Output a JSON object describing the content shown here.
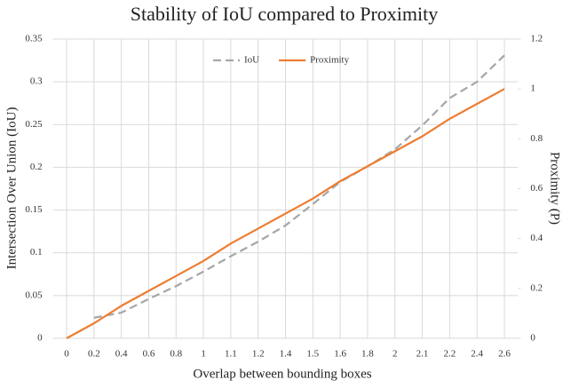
{
  "chart_data": {
    "type": "line",
    "title": "Stability of IoU compared to Proximity",
    "x_label": "Overlap between bounding boxes",
    "y_label": "Intersection Over Union (IoU)",
    "y2_label": "Proximity (P)",
    "categories": [
      "0",
      "0.2",
      "0.4",
      "0.6",
      "0.8",
      "1",
      "1.1",
      "1.2",
      "1.4",
      "1.5",
      "1.6",
      "1.8",
      "2",
      "2.1",
      "2.2",
      "2.4",
      "2.6"
    ],
    "series": [
      {
        "name": "IoU",
        "color": "#a6a6a6",
        "dash": true,
        "values": [
          null,
          0.024,
          0.03,
          0.046,
          0.061,
          0.078,
          0.096,
          0.113,
          0.132,
          0.157,
          0.183,
          0.201,
          0.221,
          0.249,
          0.281,
          0.3,
          0.331
        ]
      },
      {
        "name": "Proximity",
        "color": "#ed7d31",
        "axis": "y2",
        "values": [
          0,
          0.06,
          0.13,
          0.19,
          0.25,
          0.31,
          0.38,
          0.44,
          0.5,
          0.56,
          0.63,
          0.69,
          0.75,
          0.81,
          0.88,
          0.94,
          1
        ]
      }
    ],
    "ylim": [
      0,
      0.35
    ],
    "yticks": [
      0,
      0.05,
      0.1,
      0.15,
      0.2,
      0.25,
      0.3,
      0.35
    ],
    "y2lim": [
      0,
      1.2
    ],
    "y2ticks": [
      0,
      0.2,
      0.4,
      0.6,
      0.8,
      1,
      1.2
    ],
    "grid": true,
    "legend": "top"
  }
}
